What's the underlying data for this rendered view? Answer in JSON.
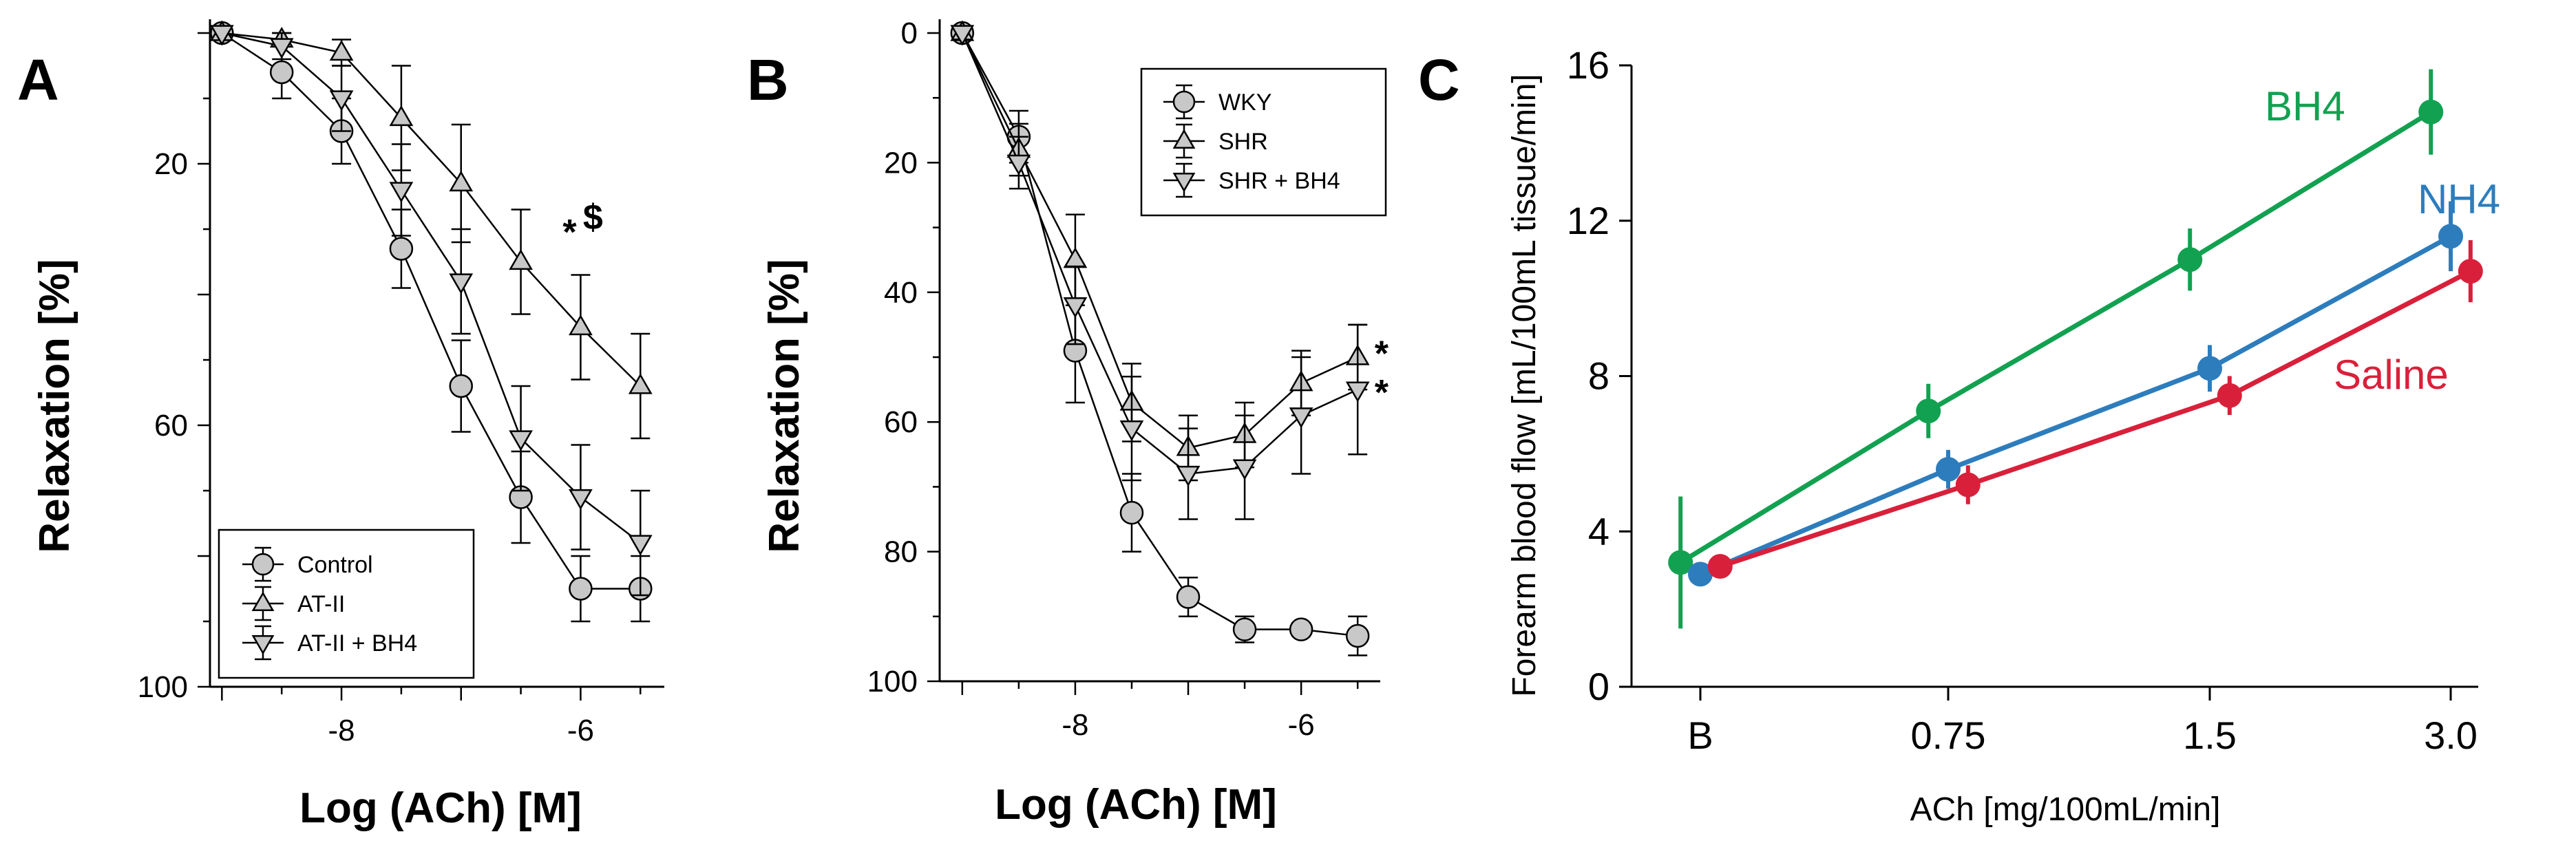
{
  "chart_data": [
    {
      "panel": "A",
      "type": "line",
      "xlabel": "Log (ACh) [M]",
      "ylabel": "Relaxation [%]",
      "xlim": [
        -9.1,
        -5.3
      ],
      "ylim": [
        0,
        100
      ],
      "y_inverted": true,
      "xticks": [
        -8,
        -6
      ],
      "xtick_labels": [
        "-8",
        "-6"
      ],
      "yticks": [
        20,
        60,
        100
      ],
      "ytick_labels": [
        "20",
        "60",
        "100"
      ],
      "x": [
        -9,
        -8.5,
        -8,
        -7.5,
        -7,
        -6.5,
        -6,
        -5.5
      ],
      "legend_position": "bottom-left",
      "series": [
        {
          "name": "Control",
          "marker": "circle",
          "values": [
            0,
            6,
            15,
            33,
            54,
            71,
            85,
            85
          ],
          "errors": [
            0,
            4,
            5,
            6,
            7,
            7,
            5,
            5
          ]
        },
        {
          "name": "AT-II",
          "marker": "triangle-up",
          "values": [
            0,
            1,
            3,
            13,
            23,
            35,
            45,
            54
          ],
          "errors": [
            0,
            1,
            2,
            8,
            9,
            8,
            8,
            8
          ]
        },
        {
          "name": "AT-II + BH4",
          "marker": "triangle-down",
          "values": [
            0,
            2,
            10,
            24,
            38,
            62,
            71,
            78
          ],
          "errors": [
            0,
            2,
            5,
            7,
            8,
            8,
            8,
            8
          ]
        }
      ],
      "annotations": [
        {
          "text": "*",
          "x": -6.15,
          "y": 30
        },
        {
          "text": "$",
          "x": -5.98,
          "y": 30
        }
      ]
    },
    {
      "panel": "B",
      "type": "line",
      "xlabel": "Log (ACh) [M]",
      "ylabel": "Relaxation [%]",
      "xlim": [
        -9.2,
        -5.3
      ],
      "ylim": [
        0,
        100
      ],
      "y_inverted": true,
      "xticks": [
        -8,
        -6
      ],
      "xtick_labels": [
        "-8",
        "-6"
      ],
      "yticks": [
        0,
        20,
        40,
        60,
        80,
        100
      ],
      "ytick_labels": [
        "0",
        "20",
        "40",
        "60",
        "80",
        "100"
      ],
      "x": [
        -9,
        -8.5,
        -8,
        -7.5,
        -7,
        -6.5,
        -6,
        -5.5
      ],
      "legend_position": "top-right",
      "series": [
        {
          "name": "WKY",
          "marker": "circle",
          "values": [
            0,
            16,
            49,
            74,
            87,
            92,
            92,
            93
          ],
          "errors": [
            1,
            4,
            8,
            6,
            3,
            2,
            1,
            3
          ]
        },
        {
          "name": "SHR",
          "marker": "triangle-up",
          "values": [
            0,
            18,
            35,
            57,
            64,
            62,
            54,
            50
          ],
          "errors": [
            1,
            4,
            7,
            6,
            5,
            5,
            5,
            5
          ]
        },
        {
          "name": "SHR + BH4",
          "marker": "triangle-down",
          "values": [
            0,
            20,
            42,
            61,
            68,
            67,
            59,
            55
          ],
          "errors": [
            1,
            4,
            6,
            8,
            7,
            8,
            9,
            10
          ]
        }
      ],
      "annotations": [
        {
          "text": "*",
          "x": -5.35,
          "y": 49
        },
        {
          "text": "*",
          "x": -5.35,
          "y": 55
        }
      ]
    },
    {
      "panel": "C",
      "type": "line",
      "xlabel": "ACh [mg/100mL/min]",
      "ylabel": "Forearm blood flow [mL/100mL tissue/min]",
      "categories": [
        "B",
        "0.75",
        "1.5",
        "3.0"
      ],
      "ylim": [
        0,
        16
      ],
      "yticks": [
        0,
        4,
        8,
        12,
        16
      ],
      "ytick_labels": [
        "0",
        "4",
        "8",
        "12",
        "16"
      ],
      "series": [
        {
          "name": "BH4",
          "color": "#12a150",
          "values": [
            3.2,
            7.1,
            11.0,
            14.8
          ],
          "errors": [
            1.7,
            0.7,
            0.8,
            1.1
          ],
          "x_offset": -0.08
        },
        {
          "name": "NH4",
          "color": "#2d7dbd",
          "values": [
            2.9,
            5.6,
            8.2,
            11.6
          ],
          "errors": [
            0.2,
            0.5,
            0.6,
            0.9
          ],
          "x_offset": 0.0
        },
        {
          "name": "Saline",
          "color": "#d9203a",
          "values": [
            3.1,
            5.2,
            7.5,
            10.7
          ],
          "errors": [
            0.2,
            0.5,
            0.5,
            0.8
          ],
          "x_offset": 0.08
        }
      ]
    }
  ]
}
